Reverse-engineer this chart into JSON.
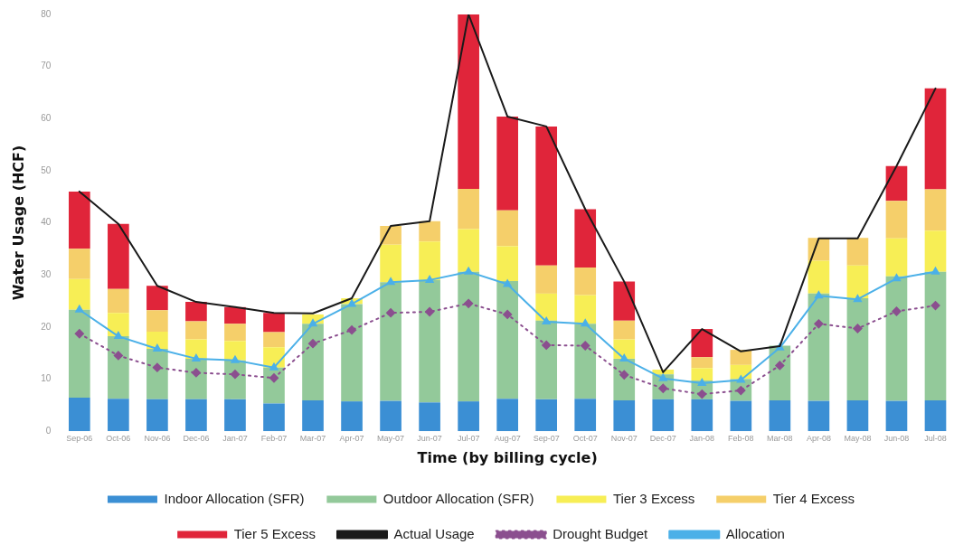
{
  "chart_data": {
    "type": "bar",
    "stacked": true,
    "xlabel": "Time (by billing cycle)",
    "ylabel": "Water Usage (HCF)",
    "categories": [
      "Sep-06",
      "Oct-06",
      "Nov-06",
      "Dec-06",
      "Jan-07",
      "Feb-07",
      "Mar-07",
      "Apr-07",
      "May-07",
      "Jun-07",
      "Jul-07",
      "Aug-07",
      "Sep-07",
      "Oct-07",
      "Nov-07",
      "Dec-07",
      "Jan-08",
      "Feb-08",
      "Mar-08",
      "Apr-08",
      "May-08",
      "Jun-08",
      "Jul-08"
    ],
    "ylim": [
      0,
      80
    ],
    "yticks": [
      0,
      10,
      20,
      30,
      40,
      50,
      60,
      70,
      80
    ],
    "grid": false,
    "legend": "bottom",
    "series": [
      {
        "name": "Indoor Allocation (SFR)",
        "color": "#3b8fd4",
        "values": [
          6.4,
          6.2,
          6.1,
          6.1,
          6.1,
          5.3,
          5.9,
          5.7,
          5.8,
          5.5,
          5.7,
          6.2,
          6.1,
          6.2,
          5.9,
          6.1,
          6.1,
          5.8,
          5.9,
          5.8,
          5.9,
          5.8,
          5.9
        ]
      },
      {
        "name": "Outdoor Allocation (SFR)",
        "color": "#93c99a",
        "values": [
          16.9,
          12,
          9.7,
          7.8,
          7.5,
          6.9,
          14.7,
          18.7,
          22.8,
          23.5,
          24.9,
          22.6,
          15.1,
          14.4,
          8,
          4.8,
          3.6,
          4.2,
          10.5,
          20.6,
          19.6,
          23.9,
          24.7
        ]
      },
      {
        "name": "Tier 3 Excess",
        "color": "#f7ee55",
        "values": [
          5.9,
          4.5,
          3.3,
          3.7,
          3.7,
          3.9,
          1.8,
          1.1,
          7.2,
          7.4,
          8.2,
          6.7,
          5.2,
          5.5,
          3.7,
          0.9,
          2.4,
          2.7,
          0,
          6.3,
          6.3,
          7.3,
          7.9
        ]
      },
      {
        "name": "Tier 4 Excess",
        "color": "#f5cf6a",
        "values": [
          5.8,
          4.6,
          4.1,
          3.5,
          3.3,
          2.9,
          0,
          0,
          3.6,
          3.9,
          7.7,
          6.9,
          5.4,
          5.3,
          3.6,
          0,
          2.1,
          2.9,
          0,
          4.4,
          5.3,
          7.2,
          7.9
        ]
      },
      {
        "name": "Tier 5 Excess",
        "color": "#e0253a",
        "values": [
          11,
          12.5,
          4.7,
          3.7,
          3.2,
          3.7,
          0,
          0,
          0,
          0,
          33.5,
          18,
          26.7,
          11.2,
          7.5,
          0,
          5.4,
          0,
          0,
          0,
          0,
          6.7,
          19.4
        ]
      },
      {
        "name": "Actual Usage",
        "type": "line",
        "color": "#1a1a1a",
        "marker": "none",
        "line_style": "solid",
        "values": [
          46,
          39.8,
          27.9,
          24.8,
          23.8,
          22.7,
          22.6,
          25.5,
          39.4,
          40.3,
          80,
          60.4,
          58.5,
          42.6,
          28.7,
          11.3,
          19.6,
          15.3,
          16.3,
          37,
          37,
          50.9,
          65.8
        ]
      },
      {
        "name": "Drought Budget",
        "type": "line",
        "color": "#8b4f8f",
        "marker": "diamond",
        "line_style": "dotted",
        "values": [
          18.7,
          14.5,
          12.2,
          11.2,
          10.9,
          10.2,
          16.8,
          19.4,
          22.7,
          22.9,
          24.5,
          22.4,
          16.5,
          16.4,
          10.8,
          8.2,
          7.1,
          7.8,
          12.6,
          20.6,
          19.7,
          23,
          24.1
        ]
      },
      {
        "name": "Allocation",
        "type": "line",
        "color": "#4bb0e8",
        "marker": "triangle",
        "line_style": "solid",
        "values": [
          23.3,
          18.2,
          15.8,
          13.9,
          13.6,
          12.2,
          20.6,
          24.4,
          28.6,
          29,
          30.6,
          28.2,
          21,
          20.6,
          13.9,
          10.1,
          9.2,
          9.8,
          16,
          26,
          25.3,
          29.3,
          30.6
        ]
      }
    ]
  }
}
